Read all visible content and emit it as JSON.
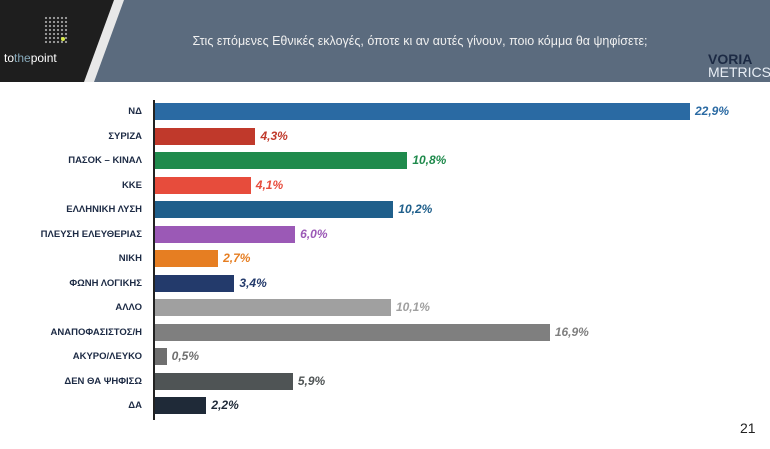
{
  "header": {
    "title": "Στις επόμενες Εθνικές εκλογές, όποτε κι αν αυτές γίνουν, ποιο κόμμα θα ψηφίσετε;",
    "logo_left": "tothepoint",
    "logo_right": [
      "VORIA",
      "METRICS"
    ]
  },
  "page_number": "21",
  "chart_data": {
    "type": "bar",
    "orientation": "horizontal",
    "title": "",
    "xlabel": "",
    "ylabel": "",
    "xlim": [
      0,
      23
    ],
    "grid": false,
    "categories": [
      "ΝΔ",
      "ΣΥΡΙΖΑ",
      "ΠΑΣΟΚ – ΚΙΝΑΛ",
      "ΚΚΕ",
      "ΕΛΛΗΝΙΚΗ ΛΥΣΗ",
      "ΠΛΕΥΣΗ ΕΛΕΥΘΕΡΙΑΣ",
      "ΝΙΚΗ",
      "ΦΩΝΗ ΛΟΓΙΚΗΣ",
      "ΑΛΛΟ",
      "ΑΝΑΠΟΦΑΣΙΣΤΟΣ/Η",
      "ΑΚΥΡΟ/ΛΕΥΚΟ",
      "ΔΕΝ ΘΑ ΨΗΦΙΣΩ",
      "ΔΑ"
    ],
    "values": [
      22.9,
      4.3,
      10.8,
      4.1,
      10.2,
      6.0,
      2.7,
      3.4,
      10.1,
      16.9,
      0.5,
      5.9,
      2.2
    ],
    "labels": [
      "22,9%",
      "4,3%",
      "10,8%",
      "4,1%",
      "10,2%",
      "6,0%",
      "2,7%",
      "3,4%",
      "10,1%",
      "16,9%",
      "0,5%",
      "5,9%",
      "2,2%"
    ],
    "colors": [
      "#2a6aa3",
      "#c0392b",
      "#1f8a4c",
      "#e74c3c",
      "#1f5f8b",
      "#9b59b6",
      "#e67e22",
      "#233a6b",
      "#a0a0a0",
      "#7f7f7f",
      "#6f6f6f",
      "#4f5455",
      "#1f2a38"
    ]
  }
}
